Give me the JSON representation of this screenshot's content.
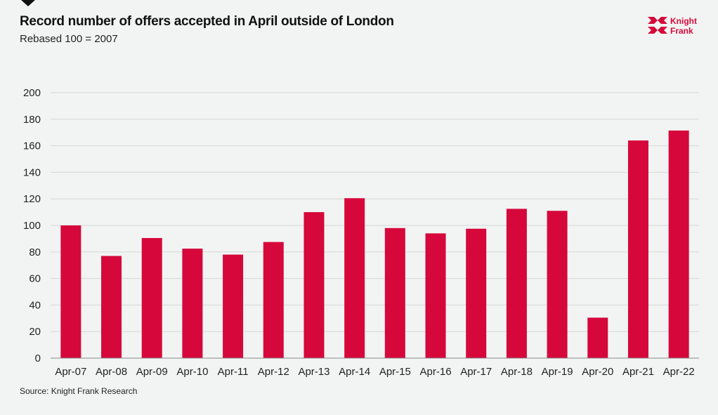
{
  "header": {
    "title": "Record number of offers accepted in April outside of London",
    "subtitle": "Rebased 100 = 2007"
  },
  "footer": {
    "source": "Source: Knight Frank Research"
  },
  "logo": {
    "text": "Knight Frank",
    "color": "#d6083b"
  },
  "chart_data": {
    "type": "bar",
    "title": "Record number of offers accepted in April outside of London",
    "subtitle": "Rebased 100 = 2007",
    "categories": [
      "Apr-07",
      "Apr-08",
      "Apr-09",
      "Apr-10",
      "Apr-11",
      "Apr-12",
      "Apr-13",
      "Apr-14",
      "Apr-15",
      "Apr-16",
      "Apr-17",
      "Apr-18",
      "Apr-19",
      "Apr-20",
      "Apr-21",
      "Apr-22"
    ],
    "values": [
      100,
      77,
      90.5,
      82.5,
      78,
      87.5,
      110,
      120.5,
      98,
      94,
      97.5,
      112.5,
      111,
      30.5,
      164,
      171.5
    ],
    "ylim": [
      0,
      200
    ],
    "yticks": [
      0,
      20,
      40,
      60,
      80,
      100,
      120,
      140,
      160,
      180,
      200
    ],
    "xlabel": "",
    "ylabel": "",
    "grid": true,
    "bar_color": "#d6083b"
  }
}
